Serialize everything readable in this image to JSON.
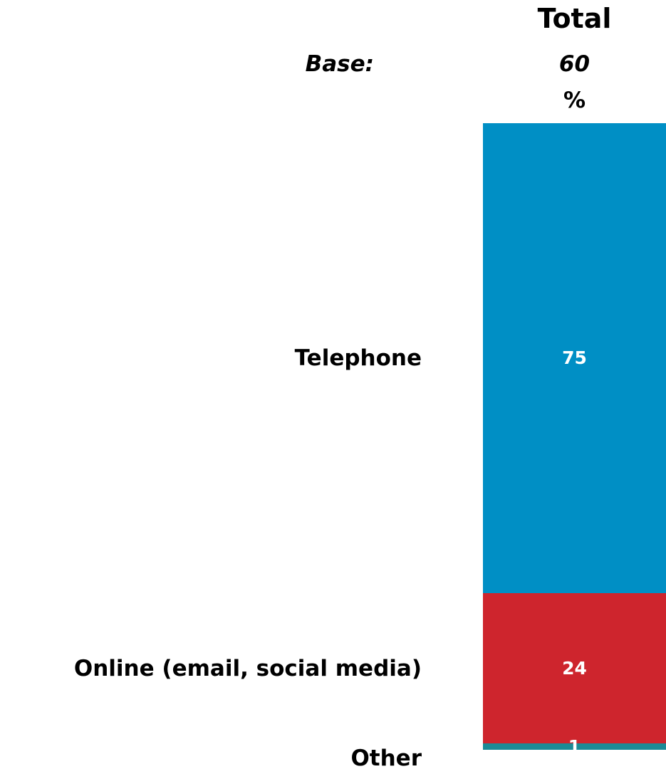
{
  "chart_data": {
    "type": "bar",
    "stacked": true,
    "column": "Total",
    "base_label": "Base:",
    "base_value": "60",
    "unit": "%",
    "categories": [
      "Telephone",
      "Online (email, social media)",
      "Other"
    ],
    "values": [
      75,
      24,
      1
    ],
    "colors": [
      "#008fc5",
      "#ce252d",
      "#1b8a96"
    ]
  }
}
